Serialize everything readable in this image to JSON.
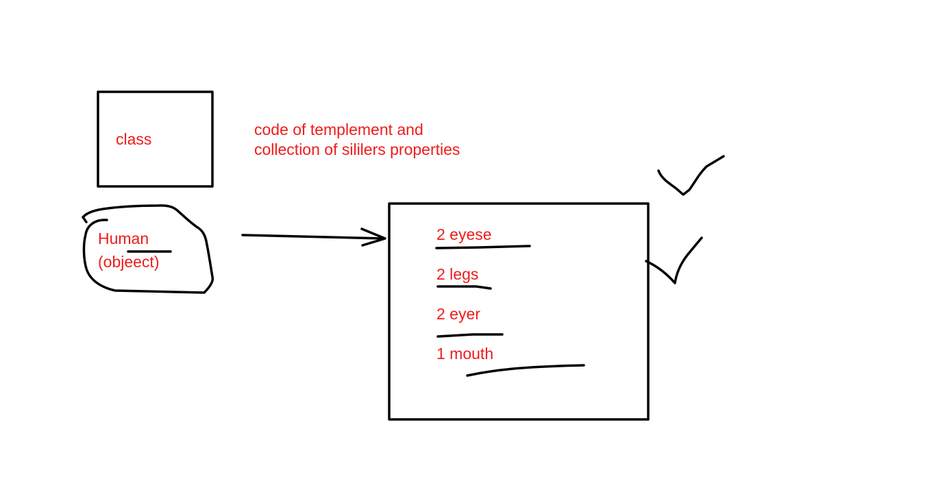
{
  "colors": {
    "ink": "#000000",
    "text": "#ee1c1c",
    "background": "#ffffff"
  },
  "class_box": {
    "label": "class"
  },
  "description": {
    "line1": "code of templement and",
    "line2": "collection of sililers properties"
  },
  "object_blob": {
    "line1": "Human",
    "line2": "(objeect)"
  },
  "properties_box": {
    "items": [
      {
        "text": "2 eyese"
      },
      {
        "text": "2 legs"
      },
      {
        "text": "2 eyer"
      },
      {
        "text": "1 mouth"
      }
    ]
  }
}
